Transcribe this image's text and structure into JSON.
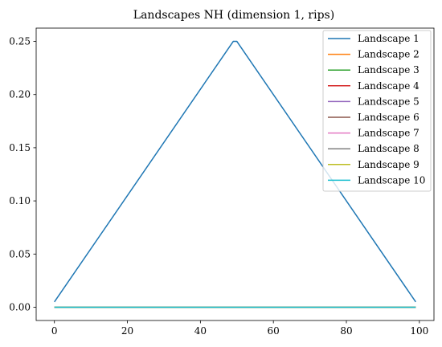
{
  "chart_data": {
    "type": "line",
    "title": "Landscapes NH (dimension 1, rips)",
    "xlabel": "",
    "ylabel": "",
    "xlim": [
      -5,
      104
    ],
    "ylim": [
      -0.0125,
      0.2625
    ],
    "xticks": [
      0,
      20,
      40,
      60,
      80,
      100
    ],
    "xtick_labels": [
      "0",
      "20",
      "40",
      "60",
      "80",
      "100"
    ],
    "yticks": [
      0.0,
      0.05,
      0.1,
      0.15,
      0.2,
      0.25
    ],
    "ytick_labels": [
      "0.00",
      "0.05",
      "0.10",
      "0.15",
      "0.20",
      "0.25"
    ],
    "grid": false,
    "legend_position": "top-right",
    "series": [
      {
        "name": "Landscape 1",
        "color": "#1f77b4",
        "x": [
          0,
          49,
          50,
          99
        ],
        "y": [
          0.005,
          0.25,
          0.25,
          0.005
        ]
      },
      {
        "name": "Landscape 2",
        "color": "#ff7f0e",
        "x": [
          0,
          99
        ],
        "y": [
          0,
          0
        ]
      },
      {
        "name": "Landscape 3",
        "color": "#2ca02c",
        "x": [
          0,
          99
        ],
        "y": [
          0,
          0
        ]
      },
      {
        "name": "Landscape 4",
        "color": "#d62728",
        "x": [
          0,
          99
        ],
        "y": [
          0,
          0
        ]
      },
      {
        "name": "Landscape 5",
        "color": "#9467bd",
        "x": [
          0,
          99
        ],
        "y": [
          0,
          0
        ]
      },
      {
        "name": "Landscape 6",
        "color": "#8c564b",
        "x": [
          0,
          99
        ],
        "y": [
          0,
          0
        ]
      },
      {
        "name": "Landscape 7",
        "color": "#e377c2",
        "x": [
          0,
          99
        ],
        "y": [
          0,
          0
        ]
      },
      {
        "name": "Landscape 8",
        "color": "#7f7f7f",
        "x": [
          0,
          99
        ],
        "y": [
          0,
          0
        ]
      },
      {
        "name": "Landscape 9",
        "color": "#bcbd22",
        "x": [
          0,
          99
        ],
        "y": [
          0,
          0
        ]
      },
      {
        "name": "Landscape 10",
        "color": "#17becf",
        "x": [
          0,
          99
        ],
        "y": [
          0,
          0
        ]
      }
    ]
  }
}
